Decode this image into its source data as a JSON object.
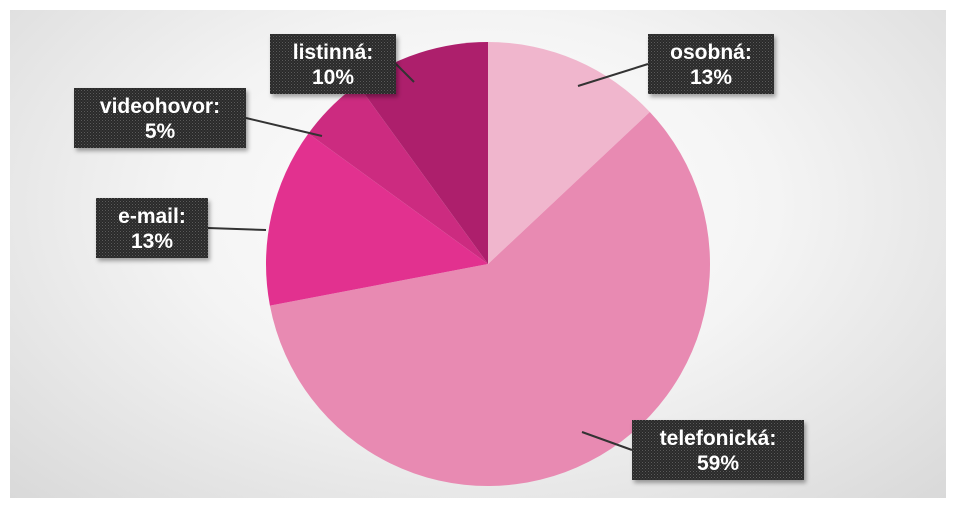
{
  "chart_data": {
    "type": "pie",
    "title": "",
    "slices": [
      {
        "label": "osobná",
        "value": 13,
        "display": "13%",
        "color": "#f0b6cd"
      },
      {
        "label": "telefonická",
        "value": 59,
        "display": "59%",
        "color": "#e88ab2"
      },
      {
        "label": "e-mail",
        "value": 13,
        "display": "13%",
        "color": "#e2318f"
      },
      {
        "label": "videohovor",
        "value": 5,
        "display": "5%",
        "color": "#cc2b80"
      },
      {
        "label": "listinná",
        "value": 10,
        "display": "10%",
        "color": "#ad1f6c"
      }
    ],
    "start_angle_deg": 0,
    "direction": "clockwise",
    "legend": "none",
    "data_labels": "callouts"
  }
}
